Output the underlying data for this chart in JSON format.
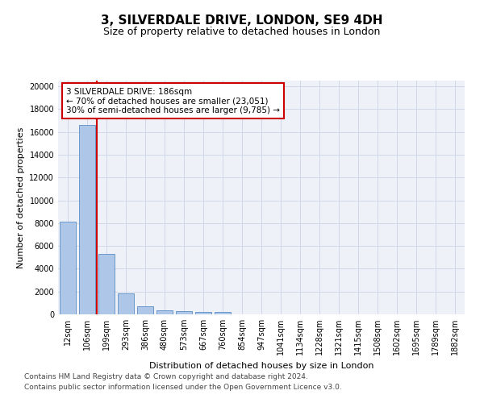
{
  "title1": "3, SILVERDALE DRIVE, LONDON, SE9 4DH",
  "title2": "Size of property relative to detached houses in London",
  "xlabel": "Distribution of detached houses by size in London",
  "ylabel": "Number of detached properties",
  "bar_labels": [
    "12sqm",
    "106sqm",
    "199sqm",
    "293sqm",
    "386sqm",
    "480sqm",
    "573sqm",
    "667sqm",
    "760sqm",
    "854sqm",
    "947sqm",
    "1041sqm",
    "1134sqm",
    "1228sqm",
    "1321sqm",
    "1415sqm",
    "1508sqm",
    "1602sqm",
    "1695sqm",
    "1789sqm",
    "1882sqm"
  ],
  "bar_values": [
    8100,
    16600,
    5300,
    1850,
    700,
    380,
    280,
    200,
    180,
    0,
    0,
    0,
    0,
    0,
    0,
    0,
    0,
    0,
    0,
    0,
    0
  ],
  "bar_color": "#aec6e8",
  "bar_edge_color": "#5b8ec4",
  "grid_color": "#d0d8e8",
  "background_color": "#eef2f8",
  "vline_color": "#cc0000",
  "annotation_text": "3 SILVERDALE DRIVE: 186sqm\n← 70% of detached houses are smaller (23,051)\n30% of semi-detached houses are larger (9,785) →",
  "annotation_box_color": "#cc0000",
  "ylim": [
    0,
    20500
  ],
  "yticks": [
    0,
    2000,
    4000,
    6000,
    8000,
    10000,
    12000,
    14000,
    16000,
    18000,
    20000
  ],
  "footer1": "Contains HM Land Registry data © Crown copyright and database right 2024.",
  "footer2": "Contains public sector information licensed under the Open Government Licence v3.0.",
  "title1_fontsize": 11,
  "title2_fontsize": 9,
  "axis_label_fontsize": 8,
  "tick_fontsize": 7,
  "annotation_fontsize": 7.5,
  "footer_fontsize": 6.5
}
